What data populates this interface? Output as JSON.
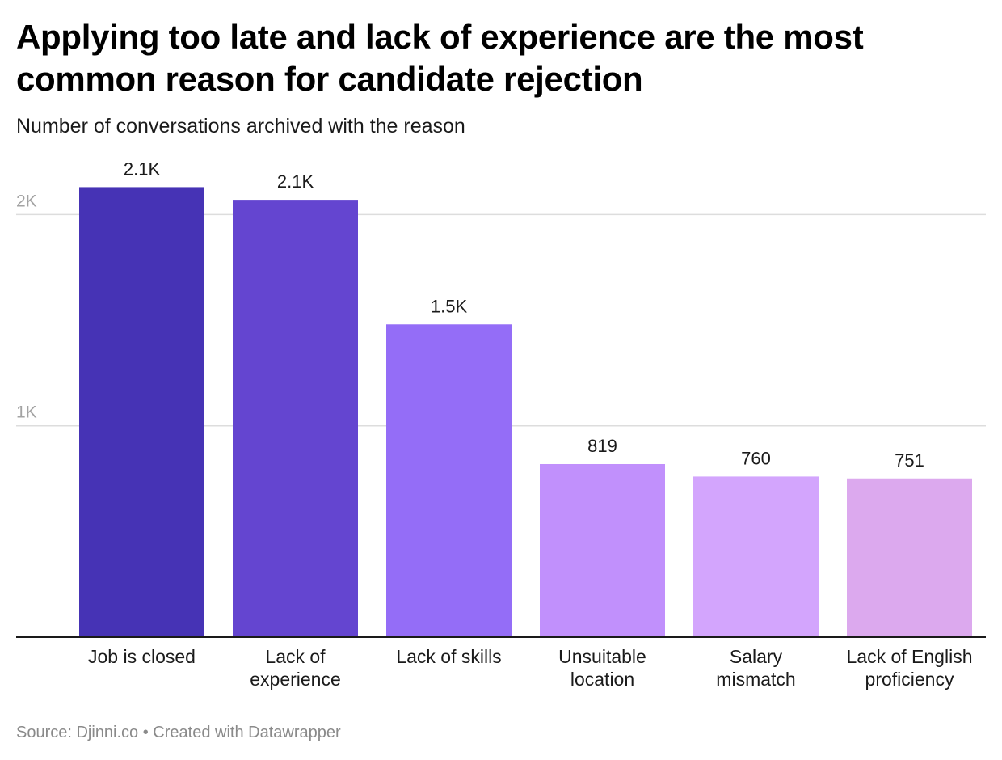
{
  "header": {
    "title": "Applying too late and lack of experience are the most common reason for candidate rejection",
    "subtitle": "Number of conversations archived with the reason"
  },
  "footer": {
    "source": "Source: Djinni.co • Created with Datawrapper"
  },
  "chart_data": {
    "type": "bar",
    "title": "Applying too late and lack of experience are the most common reason for candidate rejection",
    "subtitle": "Number of conversations archived with the reason",
    "xlabel": "",
    "ylabel": "",
    "ylim": [
      0,
      2000
    ],
    "grid": true,
    "legend": "none",
    "y_ticks": [
      {
        "value": 1000,
        "label": "1K"
      },
      {
        "value": 2000,
        "label": "2K"
      }
    ],
    "categories": [
      [
        "Job is closed"
      ],
      [
        "Lack of",
        "experience"
      ],
      [
        "Lack of skills"
      ],
      [
        "Unsuitable",
        "location"
      ],
      [
        "Salary",
        "mismatch"
      ],
      [
        "Lack of English",
        "proficiency"
      ]
    ],
    "values": [
      2130,
      2070,
      1480,
      819,
      760,
      751
    ],
    "value_labels": [
      "2.1K",
      "2.1K",
      "1.5K",
      "819",
      "760",
      "751"
    ],
    "colors": [
      "#4633b5",
      "#6445d0",
      "#946df7",
      "#c190fc",
      "#d3a5fd",
      "#dca9ee"
    ]
  }
}
